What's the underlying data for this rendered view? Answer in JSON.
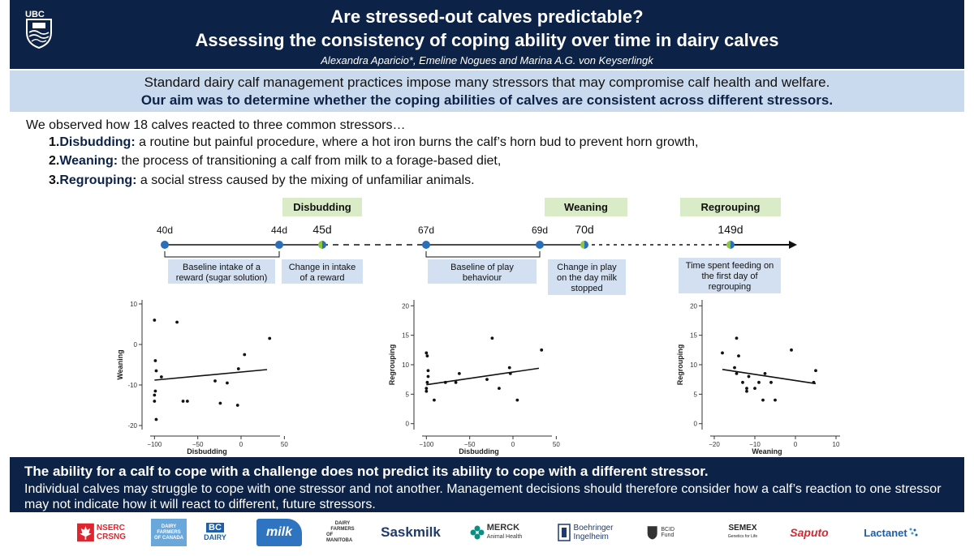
{
  "header": {
    "title_line1": "Are stressed-out calves predictable?",
    "title_line2": "Assessing the consistency of coping ability over time in dairy calves",
    "authors": "Alexandra Aparicio*, Emeline Nogues and Marina A.G. von Keyserlingk",
    "logo_text": "UBC"
  },
  "intro": {
    "line1": "Standard dairy calf management practices impose many stressors that may compromise calf health and welfare.",
    "line2": "Our aim was to determine whether the coping abilities of calves are consistent across different stressors."
  },
  "body": {
    "observe": "We observed how 18 calves reacted to three common stressors…",
    "stressors": [
      {
        "num": "1.",
        "name": "Disbudding:",
        "desc": " a routine but painful procedure, where a hot iron burns the calf’s horn bud to prevent horn growth,"
      },
      {
        "num": "2.",
        "name": "Weaning:",
        "desc": " the process of transitioning a calf from milk to a forage-based diet,"
      },
      {
        "num": "3.",
        "name": "Regrouping:",
        "desc": " a social stress caused by the mixing of unfamiliar animals."
      }
    ]
  },
  "timeline": {
    "event_boxes": [
      "Disbudding",
      "Weaning",
      "Regrouping"
    ],
    "days": [
      "40d",
      "44d",
      "45d",
      "67d",
      "69d",
      "70d",
      "149d"
    ],
    "notes": [
      [
        "Baseline intake of a",
        "reward (sugar solution)"
      ],
      [
        "Change in intake",
        "of a reward"
      ],
      [
        "Baseline of play",
        "behaviour"
      ],
      [
        "Change in play",
        "on the day milk",
        "stopped"
      ],
      [
        "Time spent feeding on",
        "the first day of",
        "regrouping"
      ]
    ]
  },
  "chart_data": [
    {
      "type": "scatter",
      "xlabel": "Disbudding",
      "ylabel": "Weaning",
      "xlim": [
        -105,
        45
      ],
      "ylim": [
        -21,
        11
      ],
      "xticks": [
        -100,
        -50,
        0,
        50
      ],
      "yticks": [
        -20,
        -10,
        0,
        10
      ],
      "x": [
        -100,
        -99,
        -98,
        -99,
        -100,
        -100,
        -98,
        -92,
        -74,
        -67,
        -62,
        -30,
        -24,
        -16,
        -3,
        -4,
        4,
        33
      ],
      "y": [
        6,
        -4,
        -6.5,
        -11.5,
        -12.5,
        -14,
        -18.5,
        -8,
        5.5,
        -14,
        -14,
        -9,
        -14.5,
        -9.5,
        -6,
        -15,
        -2.5,
        1.5
      ],
      "trendline": {
        "x": [
          -100,
          30
        ],
        "y": [
          -8.8,
          -6.2
        ]
      }
    },
    {
      "type": "scatter",
      "xlabel": "Disbudding",
      "ylabel": "Regrouping",
      "xlim": [
        -105,
        45
      ],
      "ylim": [
        -1,
        21
      ],
      "xticks": [
        -100,
        -50,
        0,
        50
      ],
      "yticks": [
        0,
        5,
        10,
        15,
        20
      ],
      "x": [
        -100,
        -99,
        -98,
        -99,
        -100,
        -100,
        -98,
        -91,
        -78,
        -66,
        -62,
        -30,
        -24,
        -16,
        -3,
        -4,
        5,
        33
      ],
      "y": [
        12,
        11.5,
        9,
        7,
        6,
        5.5,
        8,
        4,
        7,
        7,
        8.5,
        7.5,
        14.5,
        6,
        8.5,
        9.5,
        4,
        12.5
      ],
      "trendline": {
        "x": [
          -100,
          30
        ],
        "y": [
          6.6,
          9.4
        ]
      }
    },
    {
      "type": "scatter",
      "xlabel": "Weaning",
      "ylabel": "Regrouping",
      "xlim": [
        -21,
        11
      ],
      "ylim": [
        -1,
        21
      ],
      "xticks": [
        -20,
        -10,
        0,
        10
      ],
      "yticks": [
        0,
        5,
        10,
        15,
        20
      ],
      "x": [
        -18,
        -15,
        -14.5,
        -14,
        -14.5,
        -13,
        -12,
        -12,
        -11.5,
        -10,
        -9,
        -8,
        -7.5,
        -6,
        -5,
        -1,
        5,
        4.5
      ],
      "y": [
        12,
        9.5,
        14.5,
        11.5,
        8.5,
        7,
        6,
        5.5,
        8,
        6,
        7,
        4,
        8.5,
        7,
        4,
        12.5,
        9,
        7
      ],
      "trendline": {
        "x": [
          -18,
          5
        ],
        "y": [
          9.2,
          6.8
        ]
      }
    }
  ],
  "footer": {
    "conclusion_bold": "The ability for a calf to cope with a challenge does not predict its ability to cope with a different stressor.",
    "conclusion_text": "Individual calves may struggle to cope with one stressor and not another. Management decisions should therefore consider how a calf’s reaction to one stressor may not indicate how it will react to different, future stressors."
  },
  "logos": {
    "nserc": [
      "NSERC",
      "CRSNG"
    ],
    "dfc": [
      "DAIRY",
      "FARMERS",
      "OF CANADA"
    ],
    "bc": [
      "BC",
      "DAIRY"
    ],
    "milk": "milk",
    "dfm": [
      "DAIRY",
      "FARMERS",
      "OF MANITOBA"
    ],
    "sask": "Saskmilk",
    "merck": [
      "MERCK",
      "Animal Health"
    ],
    "boehringer": [
      "Boehringer",
      "Ingelheim"
    ],
    "bcid": [
      "BCID Fund"
    ],
    "semex": [
      "SEMEX",
      "Genetics for Life"
    ],
    "saputo": "Saputo",
    "lactanet": "Lactanet",
    "colors": {
      "navy": "#0c2347",
      "light_blue": "#c9d9ee",
      "timeline_blue": "#2a6fb9",
      "event_green": "#d9ecc7",
      "note_blue": "#d3e0f1",
      "nserc_red": "#e1252f",
      "saputo_red": "#d8262e"
    }
  }
}
